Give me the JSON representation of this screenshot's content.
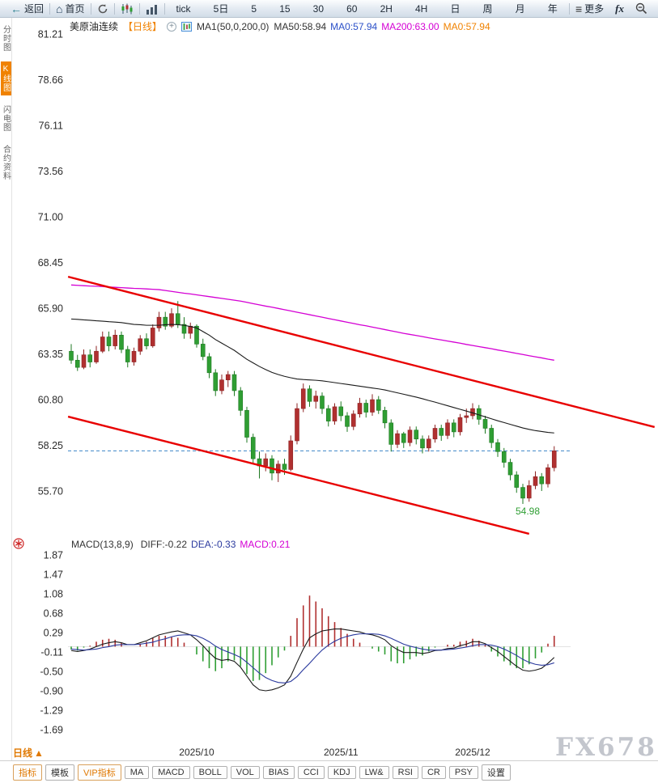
{
  "toolbar": {
    "back": {
      "icon_glyph": "←",
      "label": "返回"
    },
    "home": {
      "icon_glyph": "⌂",
      "label": "首页"
    },
    "refresh_icon": "refresh",
    "kline_chart_icon": "kline-chart",
    "volume_chart_icon": "volume-chart",
    "periods": [
      "tick",
      "5日",
      "5",
      "15",
      "30",
      "60",
      "2H",
      "4H",
      "日",
      "周",
      "月",
      "年"
    ],
    "more": {
      "icon_glyph": "≡",
      "label": "更多"
    },
    "fx_label": "fx",
    "zoom_out_icon": "magnifier-minus"
  },
  "sidebar": {
    "items": [
      {
        "label": "分时图",
        "active": false
      },
      {
        "label": "K线图",
        "active": true
      },
      {
        "label": "闪电图",
        "active": false
      },
      {
        "label": "合约资料",
        "active": false
      }
    ]
  },
  "chart_header": {
    "symbol": "美原油连续",
    "period_tag": "【日线】",
    "plus_glyph": "+",
    "indicator_label": "MA1(50,0,200,0)",
    "ma_values": [
      {
        "text": "MA50:58.94",
        "color": "#333333"
      },
      {
        "text": "MA0:57.94",
        "color": "#2b50c8"
      },
      {
        "text": "MA200:63.00",
        "color": "#d400d4"
      },
      {
        "text": "MA0:57.94",
        "color": "#f08200"
      }
    ]
  },
  "macd_header": {
    "title": "MACD(13,8,9)",
    "values": [
      {
        "text": "DIFF:-0.22",
        "color": "#333333"
      },
      {
        "text": "DEA:-0.33",
        "color": "#2b3a9e"
      },
      {
        "text": "MACD:0.21",
        "color": "#d400d4"
      }
    ]
  },
  "bottom_bar": {
    "period_selector": {
      "label": "日线",
      "arrow": "▲"
    },
    "tabs": [
      {
        "label": "指标",
        "accent": true
      },
      {
        "label": "模板",
        "accent": false
      },
      {
        "label": "VIP指标",
        "accent": true
      },
      {
        "label": "MA",
        "accent": false
      },
      {
        "label": "MACD",
        "accent": false
      },
      {
        "label": "BOLL",
        "accent": false
      },
      {
        "label": "VOL",
        "accent": false
      },
      {
        "label": "BIAS",
        "accent": false
      },
      {
        "label": "CCI",
        "accent": false
      },
      {
        "label": "KDJ",
        "accent": false
      },
      {
        "label": "LW&",
        "accent": false
      },
      {
        "label": "RSI",
        "accent": false
      },
      {
        "label": "CR",
        "accent": false
      },
      {
        "label": "PSY",
        "accent": false
      },
      {
        "label": "设置",
        "accent": false
      }
    ]
  },
  "watermark": "FX678",
  "colors": {
    "up": "#b03030",
    "up_stroke": "#8e2424",
    "down": "#2f9e33",
    "down_stroke": "#1f7a23",
    "ma50": "#1a1a1a",
    "ma200": "#d400d4",
    "diff": "#1a1a1a",
    "dea": "#2b3a9e",
    "trend": "#e80000",
    "last_price_line": "#3d85c8",
    "axis_text": "#2b2b2b",
    "accent_orange": "#f08200"
  },
  "chart_data": [
    {
      "type": "candlestick",
      "title": "美原油连续 日线",
      "ylim": [
        54.5,
        81.21
      ],
      "y_ticks": [
        "81.21",
        "78.66",
        "76.11",
        "73.56",
        "71.00",
        "68.45",
        "65.90",
        "63.35",
        "60.80",
        "58.25",
        "55.70"
      ],
      "x_labels": [
        "2025/10",
        "2025/11",
        "2025/12"
      ],
      "x_label_indices": [
        20,
        43,
        64
      ],
      "candles": [
        [
          63.5,
          63.9,
          62.8,
          63.0
        ],
        [
          63.0,
          63.3,
          62.4,
          62.6
        ],
        [
          62.6,
          63.6,
          62.5,
          63.3
        ],
        [
          63.3,
          63.6,
          62.6,
          62.9
        ],
        [
          62.9,
          63.8,
          62.8,
          63.5
        ],
        [
          63.5,
          64.6,
          63.4,
          64.3
        ],
        [
          64.3,
          64.6,
          63.5,
          63.8
        ],
        [
          63.8,
          64.7,
          63.6,
          64.4
        ],
        [
          64.4,
          64.6,
          63.4,
          63.6
        ],
        [
          63.6,
          63.8,
          62.6,
          62.9
        ],
        [
          62.9,
          63.7,
          62.7,
          63.5
        ],
        [
          63.5,
          64.4,
          63.3,
          64.2
        ],
        [
          64.2,
          64.5,
          63.6,
          63.8
        ],
        [
          63.8,
          65.0,
          63.7,
          64.8
        ],
        [
          64.8,
          65.7,
          64.6,
          65.4
        ],
        [
          65.4,
          65.7,
          64.7,
          64.9
        ],
        [
          64.9,
          65.9,
          64.8,
          65.6
        ],
        [
          65.6,
          66.3,
          64.8,
          65.0
        ],
        [
          65.0,
          65.4,
          64.2,
          64.5
        ],
        [
          64.5,
          65.1,
          64.2,
          64.9
        ],
        [
          64.9,
          65.0,
          63.7,
          63.9
        ],
        [
          63.9,
          64.2,
          63.0,
          63.2
        ],
        [
          63.2,
          63.4,
          62.0,
          62.3
        ],
        [
          62.3,
          62.5,
          61.0,
          61.3
        ],
        [
          61.3,
          62.2,
          61.1,
          61.9
        ],
        [
          61.9,
          62.4,
          61.5,
          62.2
        ],
        [
          62.2,
          62.4,
          61.0,
          61.3
        ],
        [
          61.3,
          61.5,
          59.9,
          60.2
        ],
        [
          60.2,
          60.4,
          58.4,
          58.7
        ],
        [
          58.7,
          58.9,
          57.2,
          57.5
        ],
        [
          57.5,
          57.9,
          56.4,
          57.1
        ],
        [
          57.1,
          57.8,
          56.8,
          57.5
        ],
        [
          57.5,
          57.7,
          56.3,
          56.7
        ],
        [
          56.7,
          57.4,
          56.2,
          57.2
        ],
        [
          57.2,
          57.5,
          56.6,
          56.9
        ],
        [
          56.9,
          58.8,
          56.8,
          58.5
        ],
        [
          58.5,
          60.6,
          58.3,
          60.3
        ],
        [
          60.3,
          61.7,
          60.1,
          61.4
        ],
        [
          61.4,
          61.6,
          60.4,
          60.7
        ],
        [
          60.7,
          61.3,
          60.3,
          61.0
        ],
        [
          61.0,
          61.2,
          60.0,
          60.3
        ],
        [
          60.3,
          60.5,
          59.3,
          59.6
        ],
        [
          59.6,
          60.6,
          59.4,
          60.4
        ],
        [
          60.4,
          60.7,
          59.6,
          59.9
        ],
        [
          59.9,
          60.1,
          59.0,
          59.3
        ],
        [
          59.3,
          60.2,
          59.1,
          60.0
        ],
        [
          60.0,
          60.9,
          59.8,
          60.6
        ],
        [
          60.6,
          60.8,
          59.8,
          60.1
        ],
        [
          60.1,
          61.1,
          59.9,
          60.8
        ],
        [
          60.8,
          61.0,
          60.0,
          60.2
        ],
        [
          60.2,
          60.4,
          59.2,
          59.5
        ],
        [
          59.5,
          59.7,
          57.9,
          58.3
        ],
        [
          58.3,
          59.1,
          58.1,
          58.9
        ],
        [
          58.9,
          59.0,
          58.1,
          58.4
        ],
        [
          58.4,
          59.3,
          58.2,
          59.1
        ],
        [
          59.1,
          59.3,
          58.3,
          58.6
        ],
        [
          58.6,
          58.8,
          57.8,
          58.1
        ],
        [
          58.1,
          58.8,
          57.9,
          58.6
        ],
        [
          58.6,
          59.4,
          58.4,
          59.2
        ],
        [
          59.2,
          59.4,
          58.5,
          58.8
        ],
        [
          58.8,
          59.7,
          58.6,
          59.5
        ],
        [
          59.5,
          59.7,
          58.7,
          59.0
        ],
        [
          59.0,
          60.0,
          58.8,
          59.8
        ],
        [
          59.8,
          60.3,
          59.5,
          59.9
        ],
        [
          59.9,
          60.6,
          59.7,
          60.3
        ],
        [
          60.3,
          60.5,
          59.4,
          59.7
        ],
        [
          59.7,
          59.9,
          58.9,
          59.2
        ],
        [
          59.2,
          59.4,
          58.1,
          58.4
        ],
        [
          58.4,
          58.6,
          57.6,
          57.9
        ],
        [
          57.9,
          58.1,
          57.0,
          57.3
        ],
        [
          57.3,
          57.5,
          56.3,
          56.6
        ],
        [
          56.6,
          56.8,
          55.6,
          55.9
        ],
        [
          55.9,
          56.1,
          54.98,
          55.3
        ],
        [
          55.3,
          56.3,
          55.1,
          56.0
        ],
        [
          56.0,
          56.8,
          55.8,
          56.5
        ],
        [
          56.5,
          56.7,
          55.7,
          56.1
        ],
        [
          56.1,
          57.2,
          55.9,
          57.0
        ],
        [
          57.0,
          58.2,
          56.8,
          57.94
        ]
      ],
      "overlays": {
        "ma50": [
          65.3,
          65.28,
          65.25,
          65.23,
          65.2,
          65.18,
          65.15,
          65.13,
          65.1,
          65.05,
          65.0,
          64.98,
          64.95,
          64.95,
          64.95,
          64.98,
          65.0,
          64.98,
          64.95,
          64.88,
          64.8,
          64.6,
          64.4,
          64.15,
          63.95,
          63.75,
          63.55,
          63.3,
          63.05,
          62.85,
          62.65,
          62.48,
          62.32,
          62.2,
          62.1,
          62.02,
          61.95,
          61.92,
          61.9,
          61.88,
          61.85,
          61.8,
          61.75,
          61.7,
          61.65,
          61.6,
          61.55,
          61.5,
          61.45,
          61.4,
          61.34,
          61.26,
          61.18,
          61.1,
          61.02,
          60.94,
          60.85,
          60.75,
          60.66,
          60.56,
          60.46,
          60.36,
          60.26,
          60.16,
          60.06,
          59.95,
          59.84,
          59.73,
          59.62,
          59.52,
          59.42,
          59.32,
          59.22,
          59.14,
          59.07,
          59.02,
          58.97,
          58.94
        ],
        "ma200": [
          67.2,
          67.18,
          67.16,
          67.14,
          67.13,
          67.11,
          67.09,
          67.07,
          67.05,
          67.03,
          67.01,
          67.0,
          66.98,
          66.96,
          66.94,
          66.89,
          66.84,
          66.79,
          66.74,
          66.7,
          66.65,
          66.6,
          66.55,
          66.5,
          66.45,
          66.4,
          66.35,
          66.3,
          66.23,
          66.16,
          66.09,
          66.02,
          65.96,
          65.89,
          65.82,
          65.75,
          65.68,
          65.61,
          65.54,
          65.47,
          65.4,
          65.33,
          65.26,
          65.19,
          65.12,
          65.05,
          64.98,
          64.92,
          64.85,
          64.78,
          64.71,
          64.64,
          64.57,
          64.5,
          64.44,
          64.38,
          64.32,
          64.25,
          64.19,
          64.13,
          64.07,
          64.01,
          63.95,
          63.88,
          63.82,
          63.76,
          63.7,
          63.64,
          63.57,
          63.51,
          63.45,
          63.38,
          63.32,
          63.25,
          63.19,
          63.13,
          63.06,
          63.0
        ],
        "trend_lines": [
          {
            "x1_index": -0.5,
            "price1": 67.66,
            "x2_index": 93,
            "price2": 59.27
          },
          {
            "x1_index": -0.5,
            "price1": 59.85,
            "x2_index": 73,
            "price2": 53.31
          }
        ],
        "last_price": 57.94,
        "low_annotation": {
          "index": 72,
          "price": 54.98,
          "text": "54.98"
        }
      }
    },
    {
      "type": "macd",
      "params": "MACD(13,8,9)",
      "y_ticks": [
        "1.87",
        "1.47",
        "1.08",
        "0.68",
        "0.29",
        "-0.11",
        "-0.50",
        "-0.90",
        "-1.29",
        "-1.69"
      ],
      "histogram_rule": "2*(diff-dea)",
      "diff": [
        -0.08,
        -0.1,
        -0.08,
        -0.05,
        0.0,
        0.05,
        0.08,
        0.1,
        0.08,
        0.04,
        0.04,
        0.08,
        0.12,
        0.18,
        0.24,
        0.27,
        0.3,
        0.32,
        0.28,
        0.24,
        0.14,
        0.02,
        -0.12,
        -0.24,
        -0.28,
        -0.26,
        -0.3,
        -0.42,
        -0.6,
        -0.78,
        -0.88,
        -0.9,
        -0.88,
        -0.84,
        -0.78,
        -0.6,
        -0.32,
        -0.05,
        0.18,
        0.26,
        0.32,
        0.34,
        0.36,
        0.36,
        0.34,
        0.32,
        0.3,
        0.26,
        0.24,
        0.2,
        0.14,
        0.02,
        -0.06,
        -0.12,
        -0.12,
        -0.12,
        -0.14,
        -0.12,
        -0.08,
        -0.07,
        -0.04,
        -0.03,
        0.02,
        0.05,
        0.1,
        0.1,
        0.06,
        -0.02,
        -0.1,
        -0.2,
        -0.3,
        -0.4,
        -0.48,
        -0.5,
        -0.48,
        -0.44,
        -0.34,
        -0.22
      ],
      "dea": [
        -0.05,
        -0.06,
        -0.07,
        -0.06,
        -0.05,
        -0.02,
        0.0,
        0.03,
        0.04,
        0.04,
        0.04,
        0.05,
        0.07,
        0.09,
        0.13,
        0.16,
        0.2,
        0.23,
        0.24,
        0.24,
        0.22,
        0.17,
        0.1,
        0.01,
        -0.06,
        -0.11,
        -0.16,
        -0.22,
        -0.32,
        -0.43,
        -0.54,
        -0.63,
        -0.69,
        -0.73,
        -0.74,
        -0.71,
        -0.61,
        -0.47,
        -0.34,
        -0.2,
        -0.07,
        0.03,
        0.11,
        0.17,
        0.21,
        0.24,
        0.26,
        0.26,
        0.26,
        0.25,
        0.22,
        0.17,
        0.11,
        0.05,
        0.01,
        -0.02,
        -0.05,
        -0.07,
        -0.07,
        -0.07,
        -0.06,
        -0.05,
        -0.03,
        -0.01,
        0.02,
        0.04,
        0.04,
        0.03,
        0.0,
        -0.05,
        -0.11,
        -0.18,
        -0.26,
        -0.32,
        -0.36,
        -0.38,
        -0.37,
        -0.33
      ]
    }
  ]
}
